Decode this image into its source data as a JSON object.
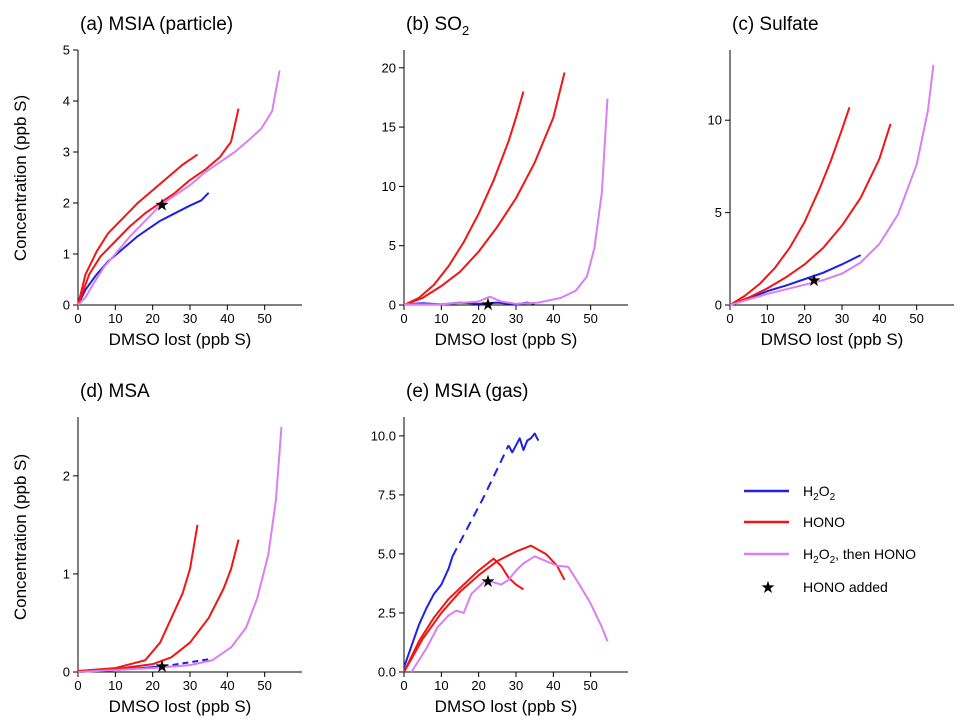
{
  "figure": {
    "ylabel_shared": "Concentration (ppb S)",
    "colors": {
      "h2o2": "#1f1fe6",
      "hono": "#f01616",
      "h2o2_hono": "#d97ff2",
      "marker": "#000000",
      "axis": "#000000"
    }
  },
  "legend": {
    "items": [
      {
        "label": "H2O2",
        "label_main": "H",
        "label_sub": "2",
        "label_mid": "O",
        "label_sub2": "2",
        "label_tail": "",
        "color": "#1f1fe6",
        "kind": "line"
      },
      {
        "label": "HONO",
        "color": "#f01616",
        "kind": "line"
      },
      {
        "label": "H2O2, then HONO",
        "label_main": "H",
        "label_sub": "2",
        "label_mid": "O",
        "label_sub2": "2",
        "label_tail": ", then HONO",
        "color": "#d97ff2",
        "kind": "line"
      },
      {
        "label": "HONO added",
        "color": "#000000",
        "kind": "star"
      }
    ]
  },
  "chart_data": [
    {
      "id": "a",
      "type": "line",
      "title": "(a) MSIA (particle)",
      "xlabel": "DMSO lost (ppb S)",
      "ylabel": "Concentration (ppb S)",
      "xlim": [
        0,
        60
      ],
      "ylim": [
        0,
        5
      ],
      "xticks": [
        0,
        10,
        20,
        30,
        40,
        50
      ],
      "yticks": [
        0,
        1,
        2,
        3,
        4,
        5
      ],
      "series": [
        {
          "key": "h2o2",
          "x": [
            0,
            2,
            5,
            8,
            12,
            16,
            20,
            22,
            26,
            30,
            33,
            35
          ],
          "y": [
            0,
            0.3,
            0.6,
            0.85,
            1.1,
            1.35,
            1.55,
            1.65,
            1.8,
            1.95,
            2.05,
            2.2
          ]
        },
        {
          "key": "hono",
          "x": [
            0,
            2,
            5,
            8,
            12,
            16,
            20,
            24,
            28,
            32
          ],
          "y": [
            0,
            0.6,
            1.05,
            1.4,
            1.7,
            2.0,
            2.25,
            2.5,
            2.75,
            2.95
          ]
        },
        {
          "key": "hono",
          "x": [
            0,
            3,
            6,
            10,
            14,
            18,
            22,
            26,
            30,
            34,
            38,
            41,
            43
          ],
          "y": [
            0,
            0.6,
            0.95,
            1.25,
            1.55,
            1.8,
            2.0,
            2.2,
            2.45,
            2.65,
            2.9,
            3.2,
            3.85
          ]
        },
        {
          "key": "h2o2_hono",
          "x": [
            0,
            2,
            4,
            7,
            10,
            14,
            18,
            22,
            26,
            30,
            34,
            38,
            42,
            46,
            49,
            52,
            54
          ],
          "y": [
            0,
            0.15,
            0.4,
            0.75,
            1.0,
            1.35,
            1.65,
            1.95,
            2.15,
            2.35,
            2.6,
            2.8,
            3.0,
            3.25,
            3.45,
            3.8,
            4.6
          ]
        }
      ],
      "markers": [
        {
          "x": 22.5,
          "y": 1.97
        }
      ]
    },
    {
      "id": "b",
      "type": "line",
      "title": "(b) SO2",
      "title_main": "(b) SO",
      "title_sub": "2",
      "xlabel": "DMSO lost (ppb S)",
      "ylabel": "",
      "xlim": [
        0,
        60
      ],
      "ylim": [
        0,
        21.5
      ],
      "xticks": [
        0,
        10,
        20,
        30,
        40,
        50
      ],
      "yticks": [
        0,
        5,
        10,
        15,
        20
      ],
      "series": [
        {
          "key": "h2o2",
          "x": [
            0,
            5,
            10,
            15,
            20,
            25,
            30,
            33,
            35
          ],
          "y": [
            0.05,
            0.15,
            0.05,
            0.2,
            0.1,
            0.2,
            0.05,
            0.2,
            0.1
          ]
        },
        {
          "key": "hono",
          "x": [
            0,
            4,
            8,
            12,
            16,
            20,
            24,
            28,
            30,
            32
          ],
          "y": [
            0,
            0.6,
            1.7,
            3.3,
            5.3,
            7.7,
            10.5,
            13.8,
            15.8,
            18.0
          ]
        },
        {
          "key": "hono",
          "x": [
            0,
            5,
            10,
            15,
            20,
            25,
            30,
            35,
            40,
            43
          ],
          "y": [
            0,
            0.6,
            1.6,
            2.8,
            4.5,
            6.6,
            9.0,
            12.0,
            15.8,
            19.6
          ]
        },
        {
          "key": "h2o2_hono",
          "x": [
            0,
            10,
            20,
            23,
            26,
            30,
            36,
            42,
            46,
            49,
            51,
            53,
            54.5
          ],
          "y": [
            0.05,
            0.05,
            0.3,
            0.7,
            0.3,
            0.1,
            0.2,
            0.6,
            1.2,
            2.4,
            4.8,
            9.5,
            17.4
          ]
        }
      ],
      "markers": [
        {
          "x": 22.5,
          "y": 0.1
        }
      ]
    },
    {
      "id": "c",
      "type": "line",
      "title": "(c) Sulfate",
      "xlabel": "DMSO lost (ppb S)",
      "ylabel": "",
      "xlim": [
        0,
        60
      ],
      "ylim": [
        0,
        13.8
      ],
      "xticks": [
        0,
        10,
        20,
        30,
        40,
        50
      ],
      "yticks": [
        0,
        5,
        10
      ],
      "series": [
        {
          "key": "h2o2",
          "x": [
            0,
            5,
            10,
            15,
            20,
            25,
            30,
            35
          ],
          "y": [
            0,
            0.35,
            0.75,
            1.05,
            1.4,
            1.75,
            2.2,
            2.7
          ]
        },
        {
          "key": "hono",
          "x": [
            0,
            4,
            8,
            12,
            16,
            20,
            24,
            27,
            30,
            32
          ],
          "y": [
            0,
            0.5,
            1.15,
            2.0,
            3.1,
            4.5,
            6.3,
            7.8,
            9.5,
            10.7
          ]
        },
        {
          "key": "hono",
          "x": [
            0,
            5,
            10,
            15,
            20,
            25,
            30,
            35,
            40,
            43
          ],
          "y": [
            0,
            0.4,
            0.9,
            1.5,
            2.2,
            3.1,
            4.3,
            5.8,
            7.9,
            9.8
          ]
        },
        {
          "key": "h2o2_hono",
          "x": [
            0,
            5,
            10,
            15,
            20,
            25,
            30,
            35,
            40,
            45,
            50,
            53,
            54.5
          ],
          "y": [
            0,
            0.3,
            0.6,
            0.85,
            1.1,
            1.35,
            1.7,
            2.3,
            3.3,
            4.9,
            7.6,
            10.5,
            13.0
          ]
        }
      ],
      "markers": [
        {
          "x": 22.5,
          "y": 1.35
        }
      ]
    },
    {
      "id": "d",
      "type": "line",
      "title": "(d) MSA",
      "xlabel": "DMSO lost (ppb S)",
      "ylabel": "Concentration (ppb S)",
      "xlim": [
        0,
        60
      ],
      "ylim": [
        0,
        2.6
      ],
      "xticks": [
        0,
        10,
        20,
        30,
        40,
        50
      ],
      "yticks": [
        0,
        1,
        2
      ],
      "series": [
        {
          "key": "h2o2",
          "x": [
            0,
            10,
            20,
            25,
            30,
            35
          ],
          "y": [
            0,
            0.02,
            0.05,
            0.07,
            0.1,
            0.13
          ],
          "dash_after": 24
        },
        {
          "key": "hono",
          "x": [
            0,
            10,
            18,
            22,
            25,
            28,
            30,
            32
          ],
          "y": [
            0.01,
            0.04,
            0.12,
            0.3,
            0.55,
            0.8,
            1.05,
            1.5
          ]
        },
        {
          "key": "hono",
          "x": [
            0,
            10,
            20,
            25,
            30,
            35,
            39,
            41,
            43
          ],
          "y": [
            0.01,
            0.03,
            0.08,
            0.15,
            0.3,
            0.55,
            0.85,
            1.05,
            1.35
          ]
        },
        {
          "key": "h2o2_hono",
          "x": [
            0,
            10,
            20,
            30,
            36,
            41,
            45,
            48,
            51,
            53,
            54.5
          ],
          "y": [
            0,
            0.02,
            0.04,
            0.07,
            0.12,
            0.25,
            0.45,
            0.75,
            1.2,
            1.75,
            2.5
          ]
        }
      ],
      "markers": [
        {
          "x": 22.5,
          "y": 0.06
        }
      ]
    },
    {
      "id": "e",
      "type": "line",
      "title": "(e) MSIA (gas)",
      "xlabel": "DMSO lost (ppb S)",
      "ylabel": "",
      "xlim": [
        0,
        60
      ],
      "ylim": [
        0,
        10.8
      ],
      "xticks": [
        0,
        10,
        20,
        30,
        40,
        50
      ],
      "yticks": [
        0.0,
        2.5,
        5.0,
        7.5,
        10.0
      ],
      "ytick_labels": [
        "0.0",
        "2.5",
        "5.0",
        "7.5",
        "10.0"
      ],
      "series": [
        {
          "key": "h2o2",
          "x": [
            0,
            2,
            4,
            6,
            8,
            10,
            12,
            13
          ],
          "y": [
            0.2,
            1.1,
            2.0,
            2.7,
            3.3,
            3.7,
            4.4,
            4.9
          ]
        },
        {
          "key": "h2o2",
          "x": [
            13,
            17,
            21,
            25,
            28
          ],
          "y": [
            4.9,
            6.1,
            7.3,
            8.6,
            9.6
          ],
          "dashed": true
        },
        {
          "key": "h2o2",
          "x": [
            28,
            29,
            30,
            31,
            32,
            33,
            34,
            35,
            36
          ],
          "y": [
            9.6,
            9.3,
            9.6,
            9.9,
            9.4,
            9.8,
            9.9,
            10.1,
            9.8
          ]
        },
        {
          "key": "hono",
          "x": [
            0,
            4,
            8,
            12,
            16,
            20,
            24,
            26,
            28,
            30,
            32
          ],
          "y": [
            0,
            1.3,
            2.3,
            3.1,
            3.7,
            4.3,
            4.8,
            4.5,
            4.0,
            3.7,
            3.5
          ]
        },
        {
          "key": "hono",
          "x": [
            0,
            5,
            10,
            15,
            20,
            25,
            30,
            34,
            38,
            41,
            43
          ],
          "y": [
            0,
            1.4,
            2.5,
            3.4,
            4.1,
            4.7,
            5.1,
            5.35,
            5.0,
            4.5,
            3.9
          ]
        },
        {
          "key": "h2o2_hono",
          "x": [
            2,
            6,
            9,
            12,
            14,
            16,
            18,
            20,
            22,
            24,
            26,
            28,
            30,
            32,
            35,
            38,
            41,
            44,
            47,
            50,
            53,
            54.5
          ],
          "y": [
            0,
            1.0,
            1.9,
            2.4,
            2.6,
            2.5,
            3.3,
            3.6,
            3.9,
            3.8,
            3.7,
            3.9,
            4.3,
            4.6,
            4.9,
            4.7,
            4.5,
            4.45,
            3.7,
            2.9,
            1.9,
            1.3
          ]
        }
      ],
      "markers": [
        {
          "x": 22.5,
          "y": 3.85
        }
      ]
    }
  ]
}
